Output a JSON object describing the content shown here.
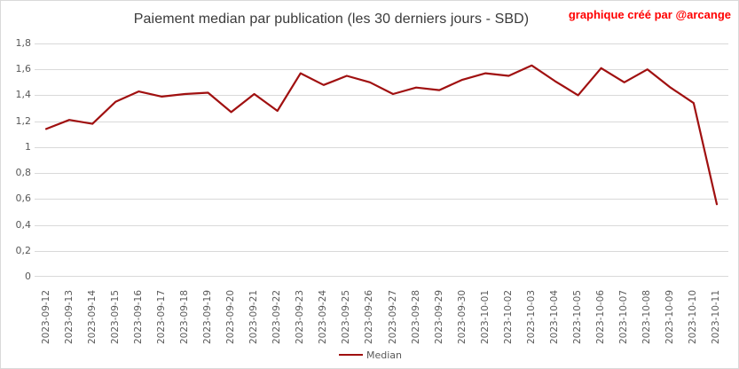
{
  "header": {
    "title": "Paiement median par publication (les 30 derniers jours - SBD)",
    "credit": "graphique créé par @arcange"
  },
  "legend": {
    "label": "Median"
  },
  "colors": {
    "series": "#a01010",
    "credit": "#ff0000",
    "grid": "#d9d9d9",
    "axis_text": "#595959",
    "title_text": "#3a3a3a"
  },
  "chart_data": {
    "type": "line",
    "title": "Paiement median par publication (les 30 derniers jours - SBD)",
    "x": [
      "2023-09-12",
      "2023-09-13",
      "2023-09-14",
      "2023-09-15",
      "2023-09-16",
      "2023-09-17",
      "2023-09-18",
      "2023-09-19",
      "2023-09-20",
      "2023-09-21",
      "2023-09-22",
      "2023-09-23",
      "2023-09-24",
      "2023-09-25",
      "2023-09-26",
      "2023-09-27",
      "2023-09-28",
      "2023-09-29",
      "2023-09-30",
      "2023-10-01",
      "2023-10-02",
      "2023-10-03",
      "2023-10-04",
      "2023-10-05",
      "2023-10-06",
      "2023-10-07",
      "2023-10-08",
      "2023-10-09",
      "2023-10-10",
      "2023-10-11"
    ],
    "series": [
      {
        "name": "Median",
        "color": "#a01010",
        "values": [
          1.14,
          1.21,
          1.18,
          1.35,
          1.43,
          1.39,
          1.41,
          1.42,
          1.27,
          1.41,
          1.28,
          1.57,
          1.48,
          1.55,
          1.5,
          1.41,
          1.46,
          1.44,
          1.52,
          1.57,
          1.55,
          1.63,
          1.51,
          1.4,
          1.61,
          1.5,
          1.6,
          1.46,
          1.34,
          0.56
        ]
      }
    ],
    "xlabel": "",
    "ylabel": "",
    "ylim": [
      0,
      1.8
    ],
    "ytick_step": 0.2,
    "ytick_labels": [
      "0",
      "0,2",
      "0,4",
      "0,6",
      "0,8",
      "1",
      "1,2",
      "1,4",
      "1,6",
      "1,8"
    ],
    "grid": "horizontal",
    "legend_position": "bottom",
    "decimal_separator": ","
  }
}
